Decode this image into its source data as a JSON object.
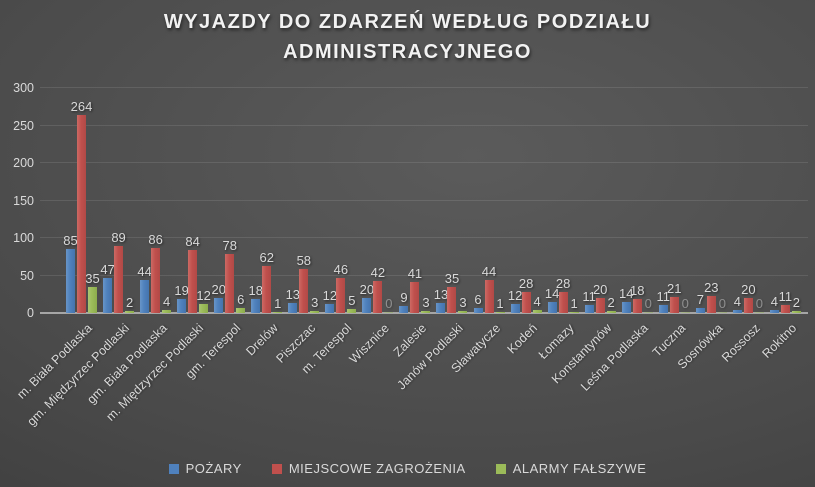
{
  "title": {
    "line1": "WYJAZDY DO ZDARZEŃ WEDŁUG PODZIAŁU",
    "line2": "ADMINISTRACYJNEGO"
  },
  "colors": {
    "background_center": "#5b5b5b",
    "background_edge": "#333333",
    "gridline": "rgba(255,255,255,0.10)",
    "axis_line": "#a6a6a6",
    "label_text": "#d9d9d9",
    "title_text": "#f2f2f2",
    "series_blue": "#4F81BD",
    "series_red": "#C0504D",
    "series_green": "#9BBB59"
  },
  "chart_data": {
    "type": "bar",
    "title": "WYJAZDY DO ZDARZEŃ WEDŁUG PODZIAŁU ADMINISTRACYJNEGO",
    "xlabel": "",
    "ylabel": "",
    "ylim": [
      0,
      300
    ],
    "yticks": [
      0,
      50,
      100,
      150,
      200,
      250,
      300
    ],
    "grid": true,
    "data_labels": true,
    "legend_position": "bottom",
    "categories": [
      "m. Biała Podlaska",
      "gm. Międzyrzec Podlaski",
      "gm. Biała Podlaska",
      "m. Międzyrzec Podlaski",
      "gm. Terespol",
      "Drelów",
      "Piszczac",
      "m. Terespol",
      "Wisznice",
      "Zalesie",
      "Janów Podlaski",
      "Sławatycze",
      "Kodeń",
      "Łomazy",
      "Konstantynów",
      "Leśna Podlaska",
      "Tuczna",
      "Sosnówka",
      "Rossosz",
      "Rokitno"
    ],
    "series": [
      {
        "name": "POŻARY",
        "color": "#4F81BD",
        "values": [
          85,
          47,
          44,
          19,
          20,
          18,
          13,
          12,
          20,
          9,
          13,
          6,
          12,
          14,
          11,
          14,
          11,
          7,
          4,
          4
        ]
      },
      {
        "name": "MIEJSCOWE ZAGROŻENIA",
        "color": "#C0504D",
        "values": [
          264,
          89,
          86,
          84,
          78,
          62,
          58,
          46,
          42,
          41,
          35,
          44,
          28,
          28,
          20,
          18,
          21,
          23,
          20,
          11
        ]
      },
      {
        "name": "ALARMY FAŁSZYWE",
        "color": "#9BBB59",
        "values": [
          35,
          2,
          4,
          12,
          6,
          1,
          3,
          5,
          0,
          3,
          3,
          1,
          4,
          1,
          2,
          0,
          0,
          0,
          0,
          2
        ]
      }
    ]
  }
}
